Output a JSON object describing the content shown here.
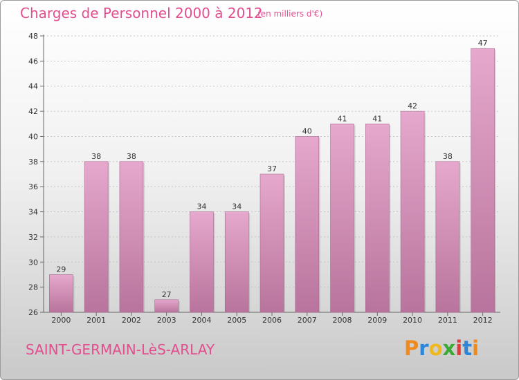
{
  "title": "Charges de Personnel 2000 à 2012",
  "subtitle": "(en milliers d'€)",
  "commune": "SAINT-GERMAIN-LèS-ARLAY",
  "brand": {
    "letters": [
      "P",
      "r",
      "o",
      "x",
      "i",
      "t",
      "i"
    ],
    "colors": [
      "#f08a1c",
      "#2e86d8",
      "#f0b81c",
      "#3aaa35",
      "#e03a3a",
      "#2e86d8",
      "#f08a1c"
    ]
  },
  "colors": {
    "bar_top": "#e6a8cd",
    "bar_bottom": "#b8749c",
    "accent": "#e24e8e"
  },
  "chart_data": {
    "type": "bar",
    "categories": [
      "2000",
      "2001",
      "2002",
      "2003",
      "2004",
      "2005",
      "2006",
      "2007",
      "2008",
      "2009",
      "2010",
      "2011",
      "2012"
    ],
    "values": [
      29,
      38,
      38,
      27,
      34,
      34,
      37,
      40,
      41,
      41,
      42,
      38,
      47
    ],
    "ylim": [
      26,
      48
    ],
    "yticks": [
      26,
      28,
      30,
      32,
      34,
      36,
      38,
      40,
      42,
      44,
      46,
      48
    ],
    "grid": true,
    "legend": "none"
  }
}
